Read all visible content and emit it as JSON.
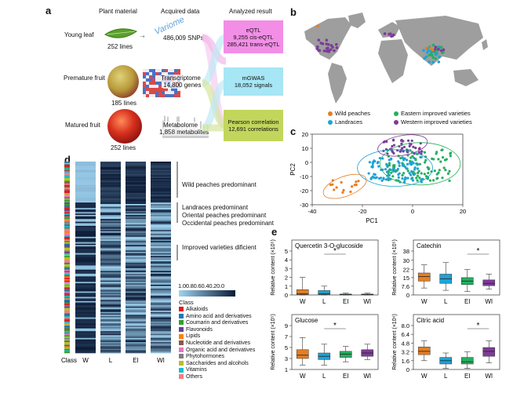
{
  "panel_labels": {
    "a": "a",
    "b": "b",
    "c": "c",
    "d": "d",
    "e": "e"
  },
  "panel_a": {
    "col_headers": {
      "plant": "Plant material",
      "acquired": "Acquired data",
      "result": "Analyzed result"
    },
    "rows": [
      {
        "name": "Young leaf",
        "count": "252 lines",
        "data": "Variome",
        "data2": "486,009 SNPs"
      },
      {
        "name": "Premature fruit",
        "count": "185 lines",
        "data": "Transcriptome",
        "data2": "14,800 genes"
      },
      {
        "name": "Matured fruit",
        "count": "252 lines",
        "data": "Metabolome",
        "data2": "1,858 metabolites"
      }
    ],
    "results": [
      {
        "l1": "eQTL",
        "l2": "9,255 cis-eQTL",
        "l3": "285,421 trans-eQTL",
        "color": "#f28ee6"
      },
      {
        "l1": "mGWAS",
        "l2": "18,052 signals",
        "color": "#a6e6f5"
      },
      {
        "l1": "Pearson correlation",
        "l2": "12,691 correlations",
        "color": "#c2d65c"
      }
    ]
  },
  "panel_b": {
    "legend": [
      {
        "label": "Wild peaches",
        "color": "#e67e22"
      },
      {
        "label": "Eastern improved varieties",
        "color": "#27ae60"
      },
      {
        "label": "Landraces",
        "color": "#1fa2d6"
      },
      {
        "label": "Western improved varieties",
        "color": "#7d3c98"
      }
    ]
  },
  "chart_data": [
    {
      "type": "scatter",
      "panel": "c",
      "xlabel": "PC1",
      "ylabel": "PC2",
      "xlim": [
        -40,
        20
      ],
      "ylim": [
        -30,
        20
      ],
      "xticks": [
        "-40",
        "-20",
        "0",
        "20"
      ],
      "yticks": [
        "20",
        "10",
        "0",
        "-10",
        "-20",
        "-30"
      ]
    },
    {
      "type": "heatmap",
      "panel": "d",
      "columns": [
        "W",
        "L",
        "EI",
        "WI"
      ],
      "row_axis_label": "Class",
      "colorbar_ticks": [
        "1.0",
        "0.8",
        "0.6",
        "0.4",
        "0.2",
        "0.0"
      ],
      "annotations": [
        "Wild peaches predominant",
        "Landraces predominant",
        "Oriental peaches predominant",
        "Occidental peaches predominant",
        "Improved varieties dificient"
      ],
      "class_title": "Class",
      "classes": [
        {
          "label": "Alkaloids",
          "color": "#e31a1c"
        },
        {
          "label": "Amino acid and derivatives",
          "color": "#1f78b4"
        },
        {
          "label": "Coumarin and derivatives",
          "color": "#33a02c"
        },
        {
          "label": "Flavonoids",
          "color": "#6a3d9a"
        },
        {
          "label": "Lipids",
          "color": "#ff7f00"
        },
        {
          "label": "Nucleotide and derivatives",
          "color": "#8c564b"
        },
        {
          "label": "Organic acid and derivatives",
          "color": "#e377c2"
        },
        {
          "label": "Phytohormones",
          "color": "#7f7f7f"
        },
        {
          "label": "Saccharides and alcohols",
          "color": "#bcbd22"
        },
        {
          "label": "Vitamins",
          "color": "#17becf"
        },
        {
          "label": "Others",
          "color": "#f08080"
        }
      ]
    },
    {
      "type": "box",
      "panel": "e",
      "categories": [
        "W",
        "L",
        "EI",
        "WI"
      ],
      "colors": [
        "#e67e22",
        "#1fa2d6",
        "#27ae60",
        "#7d3c98"
      ],
      "plots": [
        {
          "title": "Quercetin 3-O-glucoside",
          "ylabel": "Relative content (×10⁵)",
          "yticks": [
            "5",
            "4",
            "3",
            "2",
            "1",
            "0"
          ],
          "ylim": [
            0,
            5
          ],
          "boxes": [
            {
              "q1": 0.05,
              "med": 0.15,
              "q3": 0.6,
              "lo": 0,
              "hi": 2.0
            },
            {
              "q1": 0.05,
              "med": 0.15,
              "q3": 0.5,
              "lo": 0,
              "hi": 1.0
            },
            {
              "q1": 0.02,
              "med": 0.05,
              "q3": 0.1,
              "lo": 0,
              "hi": 0.2
            },
            {
              "q1": 0.02,
              "med": 0.05,
              "q3": 0.1,
              "lo": 0,
              "hi": 0.2
            }
          ],
          "sig": "*",
          "sig_pair": [
            1,
            2
          ]
        },
        {
          "title": "Catechin",
          "ylabel": "Relative content (×10⁵)",
          "yticks": [
            "38",
            "30",
            "22",
            "15",
            "7.6",
            "0"
          ],
          "ylim": [
            0,
            38
          ],
          "boxes": [
            {
              "q1": 12,
              "med": 16,
              "q3": 19,
              "lo": 6,
              "hi": 26
            },
            {
              "q1": 10,
              "med": 14,
              "q3": 18,
              "lo": 4,
              "hi": 28
            },
            {
              "q1": 9,
              "med": 12,
              "q3": 15,
              "lo": 3,
              "hi": 22
            },
            {
              "q1": 8,
              "med": 10,
              "q3": 13,
              "lo": 5,
              "hi": 18
            }
          ],
          "sig": "*",
          "sig_pair": [
            2,
            3
          ]
        },
        {
          "title": "Glucose",
          "ylabel": "Relative content (×10⁵)",
          "yticks": [
            "9",
            "7",
            "5",
            "3",
            "1"
          ],
          "ylim": [
            1,
            9
          ],
          "boxes": [
            {
              "q1": 3,
              "med": 3.6,
              "q3": 4.6,
              "lo": 1.8,
              "hi": 6.8
            },
            {
              "q1": 2.8,
              "med": 3.4,
              "q3": 4.0,
              "lo": 1.8,
              "hi": 5.6
            },
            {
              "q1": 3.2,
              "med": 3.8,
              "q3": 4.3,
              "lo": 2.4,
              "hi": 5.2
            },
            {
              "q1": 3.4,
              "med": 4.0,
              "q3": 4.6,
              "lo": 2.8,
              "hi": 5.6
            }
          ],
          "sig": "*",
          "sig_pair": [
            1,
            2
          ]
        },
        {
          "title": "Citric acid",
          "ylabel": "Relative content (×10⁶)",
          "yticks": [
            "8.0",
            "6.4",
            "4.8",
            "3.2",
            "1.6",
            "0"
          ],
          "ylim": [
            0,
            8
          ],
          "boxes": [
            {
              "q1": 2.7,
              "med": 3.3,
              "q3": 4.1,
              "lo": 1.6,
              "hi": 5.2
            },
            {
              "q1": 1.0,
              "med": 1.6,
              "q3": 2.2,
              "lo": 0.2,
              "hi": 3.0
            },
            {
              "q1": 1.0,
              "med": 1.4,
              "q3": 2.2,
              "lo": 0.2,
              "hi": 3.2
            },
            {
              "q1": 2.4,
              "med": 3.3,
              "q3": 4.0,
              "lo": 1.2,
              "hi": 5.2
            }
          ],
          "sig": "*",
          "sig_pair": [
            2,
            3
          ]
        }
      ]
    }
  ]
}
